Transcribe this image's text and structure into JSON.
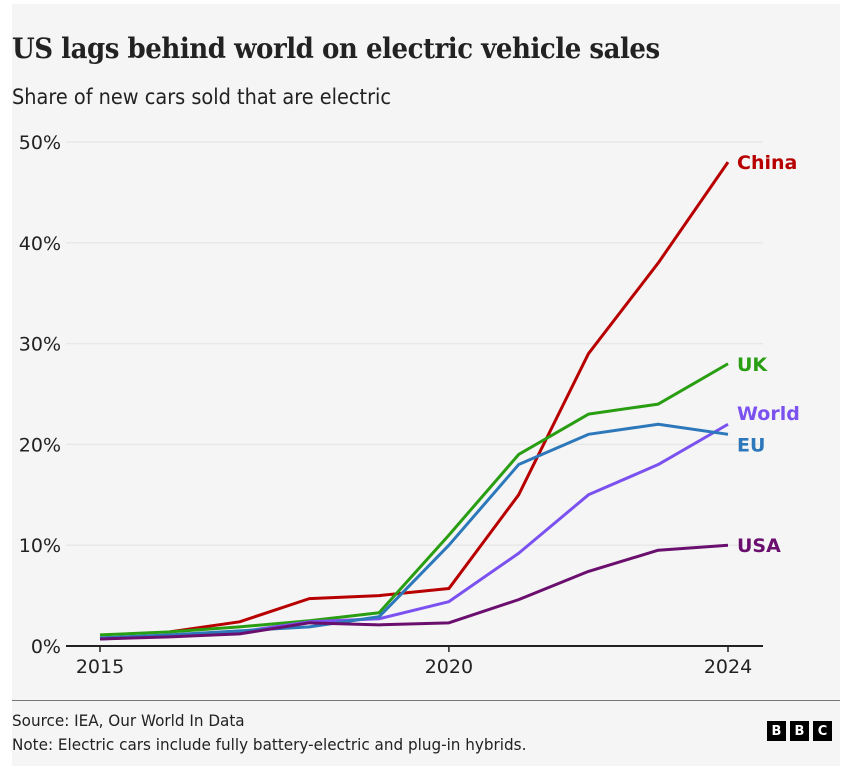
{
  "header": {
    "title": "US lags behind world on electric vehicle sales",
    "subtitle": "Share of new cars sold that are electric"
  },
  "footer": {
    "source": "Source: IEA, Our World In Data",
    "note": "Note: Electric cars include fully battery-electric and plug-in hybrids.",
    "logo_letters": [
      "B",
      "B",
      "C"
    ]
  },
  "chart_data": {
    "type": "line",
    "title": "US lags behind world on electric vehicle sales",
    "subtitle": "Share of new cars sold that are electric",
    "xlabel": "",
    "ylabel": "",
    "x": [
      2015,
      2016,
      2017,
      2018,
      2019,
      2020,
      2021,
      2022,
      2023,
      2024
    ],
    "xlim": [
      2015,
      2024
    ],
    "ylim": [
      0,
      50
    ],
    "x_ticks": [
      2015,
      2020,
      2024
    ],
    "x_tick_labels": [
      "2015",
      "2020",
      "2024"
    ],
    "y_ticks": [
      0,
      10,
      20,
      30,
      40,
      50
    ],
    "y_tick_labels": [
      "0%",
      "10%",
      "20%",
      "30%",
      "40%",
      "50%"
    ],
    "grid": "horizontal",
    "legend": "direct labels at line ends (right)",
    "series": [
      {
        "name": "China",
        "color": "#b80000",
        "values": [
          null,
          1.4,
          2.4,
          4.7,
          5.0,
          5.7,
          15,
          29,
          38,
          48
        ]
      },
      {
        "name": "UK",
        "color": "#2a9e12",
        "values": [
          1.1,
          1.4,
          1.9,
          2.5,
          3.3,
          11,
          19,
          23,
          24,
          28
        ]
      },
      {
        "name": "World",
        "color": "#7b52f0",
        "values": [
          0.7,
          1.0,
          1.4,
          2.4,
          2.7,
          4.4,
          9.2,
          15,
          18,
          22
        ]
      },
      {
        "name": "EU",
        "color": "#2d78bb",
        "values": [
          0.8,
          1.1,
          1.5,
          1.9,
          2.9,
          10,
          18,
          21,
          22,
          21
        ]
      },
      {
        "name": "USA",
        "color": "#6b0f6f",
        "values": [
          0.7,
          0.9,
          1.2,
          2.3,
          2.1,
          2.3,
          4.6,
          7.4,
          9.5,
          10
        ]
      }
    ]
  }
}
